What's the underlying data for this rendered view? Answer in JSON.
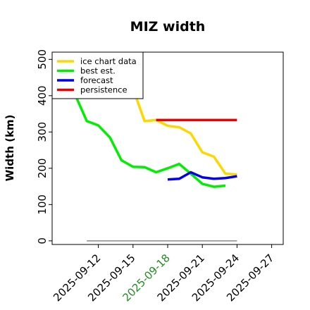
{
  "chart_data": {
    "type": "line",
    "title": "MIZ width",
    "xlabel": "",
    "ylabel": "Width (km)",
    "xlim": [
      "2025-09-08",
      "2025-09-28"
    ],
    "ylim": [
      -10,
      520
    ],
    "yticks": [
      0,
      100,
      200,
      300,
      400,
      500
    ],
    "xticks": [
      {
        "date": "2025-09-12",
        "label": "2025-09-12",
        "color": "#000000"
      },
      {
        "date": "2025-09-15",
        "label": "2025-09-15",
        "color": "#000000"
      },
      {
        "date": "2025-09-18",
        "label": "2025-09-18",
        "color": "#228b22"
      },
      {
        "date": "2025-09-21",
        "label": "2025-09-21",
        "color": "#000000"
      },
      {
        "date": "2025-09-24",
        "label": "2025-09-24",
        "color": "#000000"
      },
      {
        "date": "2025-09-27",
        "label": "2025-09-27",
        "color": "#000000"
      }
    ],
    "grid": false,
    "legend_position": "top-left",
    "series": [
      {
        "name": "ice chart data",
        "color": "#ffd700",
        "points": [
          [
            "2025-09-15",
            420
          ],
          [
            "2025-09-16",
            330
          ],
          [
            "2025-09-17",
            333
          ],
          [
            "2025-09-18",
            317
          ],
          [
            "2025-09-19",
            313
          ],
          [
            "2025-09-20",
            296
          ],
          [
            "2025-09-21",
            244
          ],
          [
            "2025-09-22",
            232
          ],
          [
            "2025-09-23",
            185
          ],
          [
            "2025-09-24",
            183
          ]
        ]
      },
      {
        "name": "best est.",
        "color": "#00ee00",
        "points": [
          [
            "2025-09-10",
            402
          ],
          [
            "2025-09-11",
            330
          ],
          [
            "2025-09-12",
            318
          ],
          [
            "2025-09-13",
            285
          ],
          [
            "2025-09-14",
            222
          ],
          [
            "2025-09-15",
            204
          ],
          [
            "2025-09-16",
            203
          ],
          [
            "2025-09-17",
            189
          ],
          [
            "2025-09-18",
            200
          ],
          [
            "2025-09-19",
            212
          ],
          [
            "2025-09-20",
            185
          ],
          [
            "2025-09-21",
            157
          ],
          [
            "2025-09-22",
            149
          ],
          [
            "2025-09-23",
            152
          ]
        ]
      },
      {
        "name": "forecast",
        "color": "#0000ee",
        "points": [
          [
            "2025-09-18",
            169
          ],
          [
            "2025-09-19",
            171
          ],
          [
            "2025-09-20",
            189
          ],
          [
            "2025-09-21",
            175
          ],
          [
            "2025-09-22",
            171
          ],
          [
            "2025-09-23",
            173
          ],
          [
            "2025-09-24",
            178
          ]
        ]
      },
      {
        "name": "persistence",
        "color": "#ee0000",
        "points": [
          [
            "2025-09-17",
            333
          ],
          [
            "2025-09-24",
            333
          ]
        ]
      }
    ],
    "baseline": {
      "color": "#888888",
      "points": [
        [
          "2025-09-11",
          0
        ],
        [
          "2025-09-24",
          0
        ]
      ]
    }
  }
}
